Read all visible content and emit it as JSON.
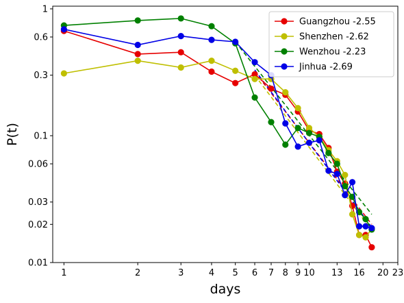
{
  "chart_data": {
    "type": "line",
    "xlabel": "days",
    "ylabel": "P(t)",
    "x_scale": "log",
    "y_scale": "log",
    "xlim": [
      0.9,
      23
    ],
    "ylim": [
      0.01,
      1.05
    ],
    "x_ticks": [
      1,
      2,
      3,
      4,
      5,
      6,
      7,
      8,
      9,
      10,
      13,
      16,
      20,
      23
    ],
    "y_ticks": [
      0.01,
      0.02,
      0.03,
      0.06,
      0.1,
      0.3,
      0.6,
      1
    ],
    "y_tick_labels": [
      "0.01",
      "0.02",
      "0.03",
      "0.06",
      "0.1",
      "0.3",
      "0.6",
      "1"
    ],
    "grid": false,
    "legend_position": "top-right",
    "series": [
      {
        "name": "Guangzhou -2.55",
        "color": "#e60000",
        "x": [
          1,
          2,
          3,
          4,
          5,
          6,
          7,
          8,
          9,
          10,
          11,
          12,
          13,
          14,
          15,
          16,
          17,
          18
        ],
        "y": [
          0.67,
          0.44,
          0.455,
          0.32,
          0.26,
          0.305,
          0.235,
          0.21,
          0.155,
          0.11,
          0.103,
          0.08,
          0.052,
          0.042,
          0.028,
          0.0165,
          0.0165,
          0.0132
        ],
        "fit": {
          "x": [
            6,
            18
          ],
          "y": [
            0.32,
            0.02
          ]
        }
      },
      {
        "name": "Shenzhen -2.62",
        "color": "#bfbf00",
        "x": [
          1,
          2,
          3,
          4,
          5,
          6,
          7,
          8,
          9,
          10,
          11,
          12,
          13,
          14,
          15,
          16,
          17,
          18
        ],
        "y": [
          0.31,
          0.39,
          0.345,
          0.39,
          0.325,
          0.28,
          0.28,
          0.22,
          0.165,
          0.115,
          0.098,
          0.077,
          0.063,
          0.049,
          0.024,
          0.0165,
          0.0158,
          0.0185
        ],
        "fit": {
          "x": [
            6,
            18
          ],
          "y": [
            0.3,
            0.018
          ]
        }
      },
      {
        "name": "Wenzhou -2.23",
        "color": "#008000",
        "x": [
          1,
          2,
          3,
          4,
          5,
          6,
          7,
          8,
          9,
          10,
          11,
          12,
          13,
          14,
          15,
          16,
          17,
          18
        ],
        "y": [
          0.74,
          0.81,
          0.84,
          0.73,
          0.535,
          0.2,
          0.128,
          0.085,
          0.115,
          0.105,
          0.098,
          0.073,
          0.06,
          0.04,
          0.033,
          0.025,
          0.022,
          0.0182
        ],
        "fit": {
          "x": [
            5,
            18
          ],
          "y": [
            0.55,
            0.024
          ]
        }
      },
      {
        "name": "Jinhua -2.69",
        "color": "#0000e6",
        "x": [
          1,
          2,
          3,
          4,
          5,
          6,
          7,
          8,
          9,
          10,
          11,
          12,
          13,
          14,
          15,
          16,
          17,
          18
        ],
        "y": [
          0.69,
          0.52,
          0.61,
          0.57,
          0.55,
          0.38,
          0.3,
          0.125,
          0.082,
          0.088,
          0.092,
          0.053,
          0.05,
          0.034,
          0.043,
          0.0193,
          0.0193,
          0.0187
        ],
        "fit": {
          "x": [
            6,
            18
          ],
          "y": [
            0.33,
            0.019
          ]
        }
      }
    ]
  }
}
